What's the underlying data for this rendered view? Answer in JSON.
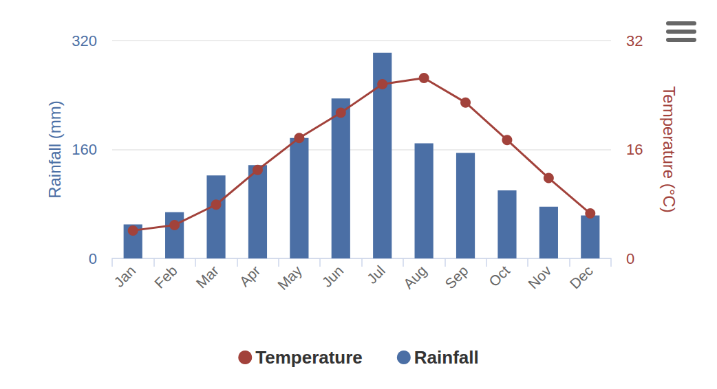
{
  "chart_data": {
    "type": "bar",
    "categories": [
      "Jan",
      "Feb",
      "Mar",
      "Apr",
      "May",
      "Jun",
      "Jul",
      "Aug",
      "Sep",
      "Oct",
      "Nov",
      "Dec"
    ],
    "y_label": "Rainfall (mm)",
    "y2_label": "Temperature (°C)",
    "ylim": [
      0,
      320
    ],
    "yticks": [
      0,
      160,
      320
    ],
    "y2lim": [
      0,
      32
    ],
    "y2ticks": [
      0,
      16,
      32
    ],
    "grid": true,
    "legend": "bottom",
    "series": [
      {
        "name": "Temperature",
        "type": "line",
        "axis": "y2",
        "color": "#a2423b",
        "marker": "circle",
        "values": [
          4.1,
          4.9,
          7.9,
          13.0,
          17.7,
          21.4,
          25.6,
          26.5,
          22.9,
          17.4,
          11.8,
          6.6
        ]
      },
      {
        "name": "Rainfall",
        "type": "bar",
        "color": "#4b6fa5",
        "values": [
          50,
          68,
          122,
          137,
          177,
          235,
          302,
          169,
          155,
          100,
          76,
          63
        ]
      }
    ]
  }
}
